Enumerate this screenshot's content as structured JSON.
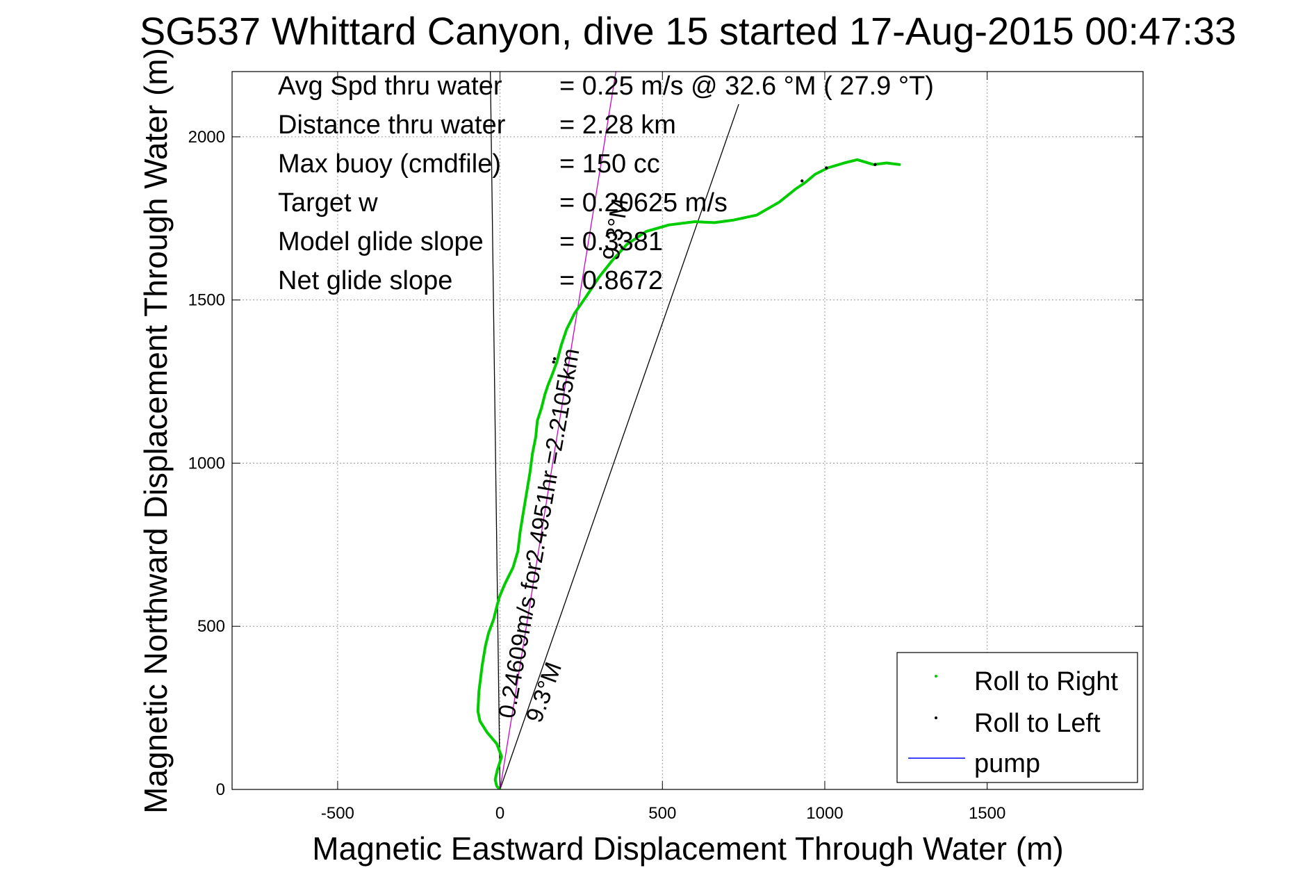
{
  "chart_data": {
    "type": "line",
    "title": "SG537 Whittard Canyon, dive 15 started 17-Aug-2015 00:47:33",
    "xlabel": "Magnetic Eastward Displacement Through Water (m)",
    "ylabel": "Magnetic Northward Displacement Through Water (m)",
    "xlim": [
      -825,
      1980
    ],
    "ylim": [
      0,
      2200
    ],
    "xticks": [
      -500,
      0,
      500,
      1000,
      1500
    ],
    "yticks": [
      0,
      500,
      1000,
      1500,
      2000
    ],
    "grid": true,
    "legend_position": "bottom-right",
    "stats": [
      {
        "label": "Avg Spd thru water",
        "value": "=  0.25 m/s @  32.6 °M ( 27.9 °T)"
      },
      {
        "label": "Distance thru water",
        "value": "=  2.28 km"
      },
      {
        "label": "Max buoy (cmdfile)",
        "value": "= 150 cc"
      },
      {
        "label": "Target w",
        "value": "= 0.20625 m/s"
      },
      {
        "label": "Model glide slope",
        "value": "= 0.3381"
      },
      {
        "label": "Net glide slope",
        "value": "= 0.8672"
      }
    ],
    "annotations": {
      "speed_line": "0.24609m/s for2.4951hr =2.2105km",
      "heading_a": "9.3°M",
      "heading_b": "9.3°M"
    },
    "series": [
      {
        "name": "Roll to Right",
        "color": "#00cc00",
        "points": [
          [
            0,
            0
          ],
          [
            -10,
            10
          ],
          [
            -15,
            30
          ],
          [
            -8,
            60
          ],
          [
            5,
            100
          ],
          [
            -10,
            140
          ],
          [
            -40,
            175
          ],
          [
            -62,
            210
          ],
          [
            -68,
            240
          ],
          [
            -65,
            300
          ],
          [
            -55,
            380
          ],
          [
            -45,
            440
          ],
          [
            -35,
            480
          ],
          [
            -20,
            520
          ],
          [
            -10,
            560
          ],
          [
            -2,
            590
          ],
          [
            15,
            630
          ],
          [
            40,
            680
          ],
          [
            55,
            730
          ],
          [
            62,
            790
          ],
          [
            72,
            850
          ],
          [
            82,
            910
          ],
          [
            92,
            970
          ],
          [
            100,
            1030
          ],
          [
            110,
            1080
          ],
          [
            115,
            1130
          ],
          [
            128,
            1170
          ],
          [
            138,
            1210
          ],
          [
            148,
            1240
          ],
          [
            160,
            1270
          ],
          [
            175,
            1310
          ],
          [
            188,
            1360
          ],
          [
            205,
            1410
          ],
          [
            230,
            1460
          ],
          [
            265,
            1510
          ],
          [
            305,
            1570
          ],
          [
            345,
            1620
          ],
          [
            390,
            1670
          ],
          [
            450,
            1710
          ],
          [
            520,
            1730
          ],
          [
            600,
            1740
          ],
          [
            660,
            1737
          ],
          [
            720,
            1745
          ],
          [
            790,
            1760
          ],
          [
            860,
            1800
          ],
          [
            910,
            1840
          ],
          [
            940,
            1860
          ],
          [
            970,
            1885
          ],
          [
            1010,
            1905
          ],
          [
            1060,
            1920
          ],
          [
            1100,
            1930
          ],
          [
            1150,
            1915
          ],
          [
            1190,
            1920
          ],
          [
            1230,
            1915
          ]
        ]
      },
      {
        "name": "Roll to Left",
        "color": "#000000",
        "points": [
          [
            165,
            1310
          ],
          [
            168,
            1320
          ],
          [
            930,
            1865
          ],
          [
            1005,
            1905
          ],
          [
            1155,
            1915
          ]
        ]
      },
      {
        "name": "pump",
        "color": "#0000ff",
        "points": []
      }
    ],
    "reference_lines": [
      {
        "color": "#000000",
        "x": [
          0,
          -30
        ],
        "y": [
          0,
          2220
        ]
      },
      {
        "color": "#000000",
        "x": [
          0,
          735
        ],
        "y": [
          0,
          2100
        ]
      },
      {
        "color": "#cc00cc",
        "x": [
          0,
          360
        ],
        "y": [
          0,
          2220
        ]
      }
    ]
  }
}
